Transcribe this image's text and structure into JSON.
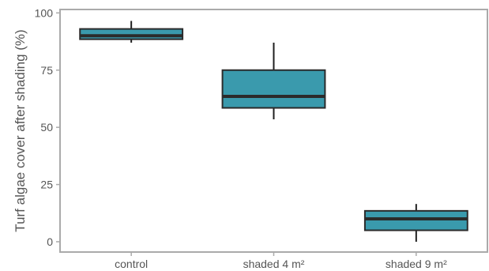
{
  "chart_data": {
    "type": "box",
    "title": "",
    "xlabel": "",
    "ylabel": "Turf algae cover after shading (%)",
    "ylim": [
      -4.5,
      101.5
    ],
    "yticks": [
      0,
      25,
      50,
      75,
      100
    ],
    "ytick_labels": [
      "0",
      "25",
      "50",
      "75",
      "100"
    ],
    "categories": [
      "control",
      "shaded 4 m²",
      "shaded 9 m²"
    ],
    "boxes": [
      {
        "category": "control",
        "whisker_low": 87,
        "q1": 88.5,
        "median": 90,
        "q3": 93,
        "whisker_high": 96.5
      },
      {
        "category": "shaded 4 m²",
        "whisker_low": 53.5,
        "q1": 58.5,
        "median": 63.5,
        "q3": 75,
        "whisker_high": 87
      },
      {
        "category": "shaded 9 m²",
        "whisker_low": 0,
        "q1": 5,
        "median": 10,
        "q3": 13.5,
        "whisker_high": 16.5
      }
    ],
    "grid": false,
    "colors": {
      "box_fill": "#3a9aad",
      "box_edge": "#2b2b2b",
      "median_line": "#2b2b2b",
      "whisker": "#1f1f1f",
      "spine": "#aaaaaa",
      "tick_text": "#555555"
    }
  }
}
